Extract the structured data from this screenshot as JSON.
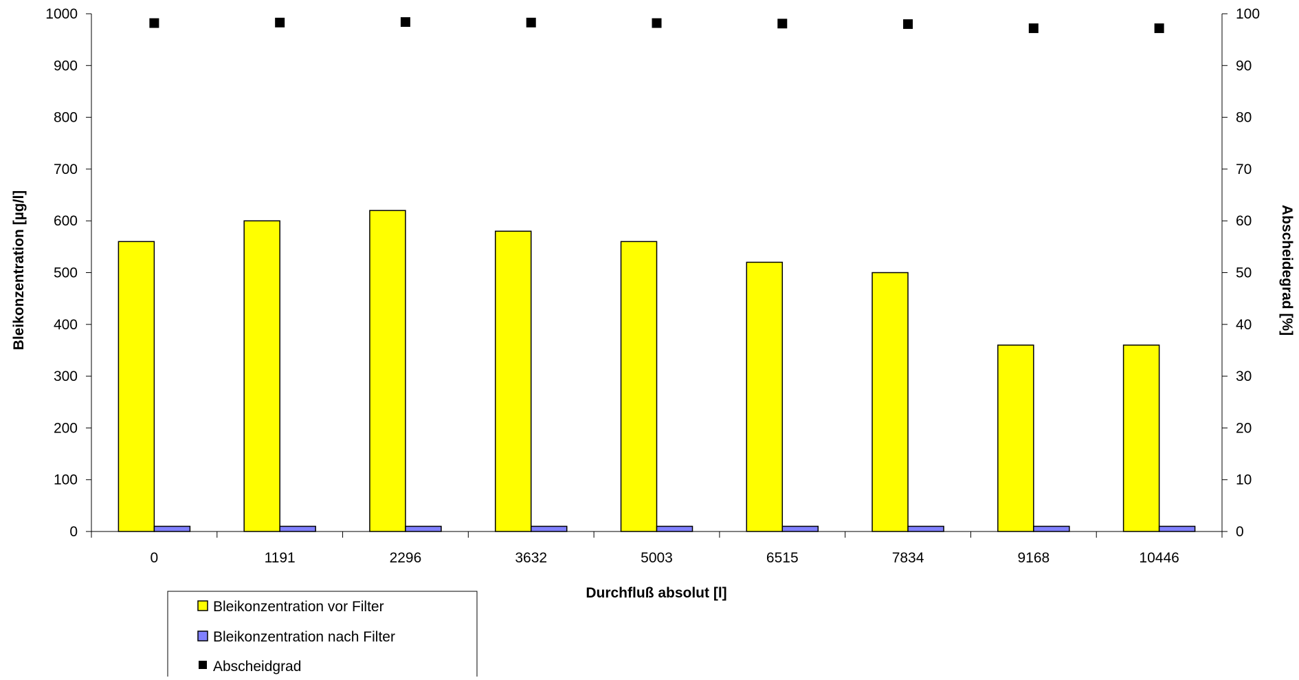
{
  "chart_data": {
    "type": "bar",
    "categories": [
      "0",
      "1191",
      "2296",
      "3632",
      "5003",
      "6515",
      "7834",
      "9168",
      "10446"
    ],
    "series": [
      {
        "name": "Bleikonzentration vor Filter",
        "kind": "bar",
        "axis": "left",
        "color": "#ffff00",
        "values": [
          560,
          600,
          620,
          580,
          560,
          520,
          500,
          360,
          360
        ]
      },
      {
        "name": "Bleikonzentration nach Filter",
        "kind": "bar",
        "axis": "left",
        "color": "#8080ff",
        "values": [
          10,
          10,
          10,
          10,
          10,
          10,
          10,
          10,
          10
        ]
      },
      {
        "name": "Abscheidgrad",
        "kind": "scatter",
        "axis": "right",
        "color": "#000000",
        "marker": "square",
        "values": [
          98.2,
          98.3,
          98.4,
          98.3,
          98.2,
          98.1,
          98.0,
          97.2,
          97.2
        ]
      }
    ],
    "xlabel": "Durchfluß absolut [l]",
    "ylabel": "Bleikonzentration [µg/l]",
    "y2label": "Abscheidegrad [%]",
    "ylim": [
      0,
      1000
    ],
    "y2lim": [
      0,
      100
    ],
    "yticks": [
      "0",
      "100",
      "200",
      "300",
      "400",
      "500",
      "600",
      "700",
      "800",
      "900",
      "1000"
    ],
    "y2ticks": [
      "0",
      "10",
      "20",
      "30",
      "40",
      "50",
      "60",
      "70",
      "80",
      "90",
      "100"
    ],
    "grid": false,
    "legend_position": "bottom-left"
  }
}
